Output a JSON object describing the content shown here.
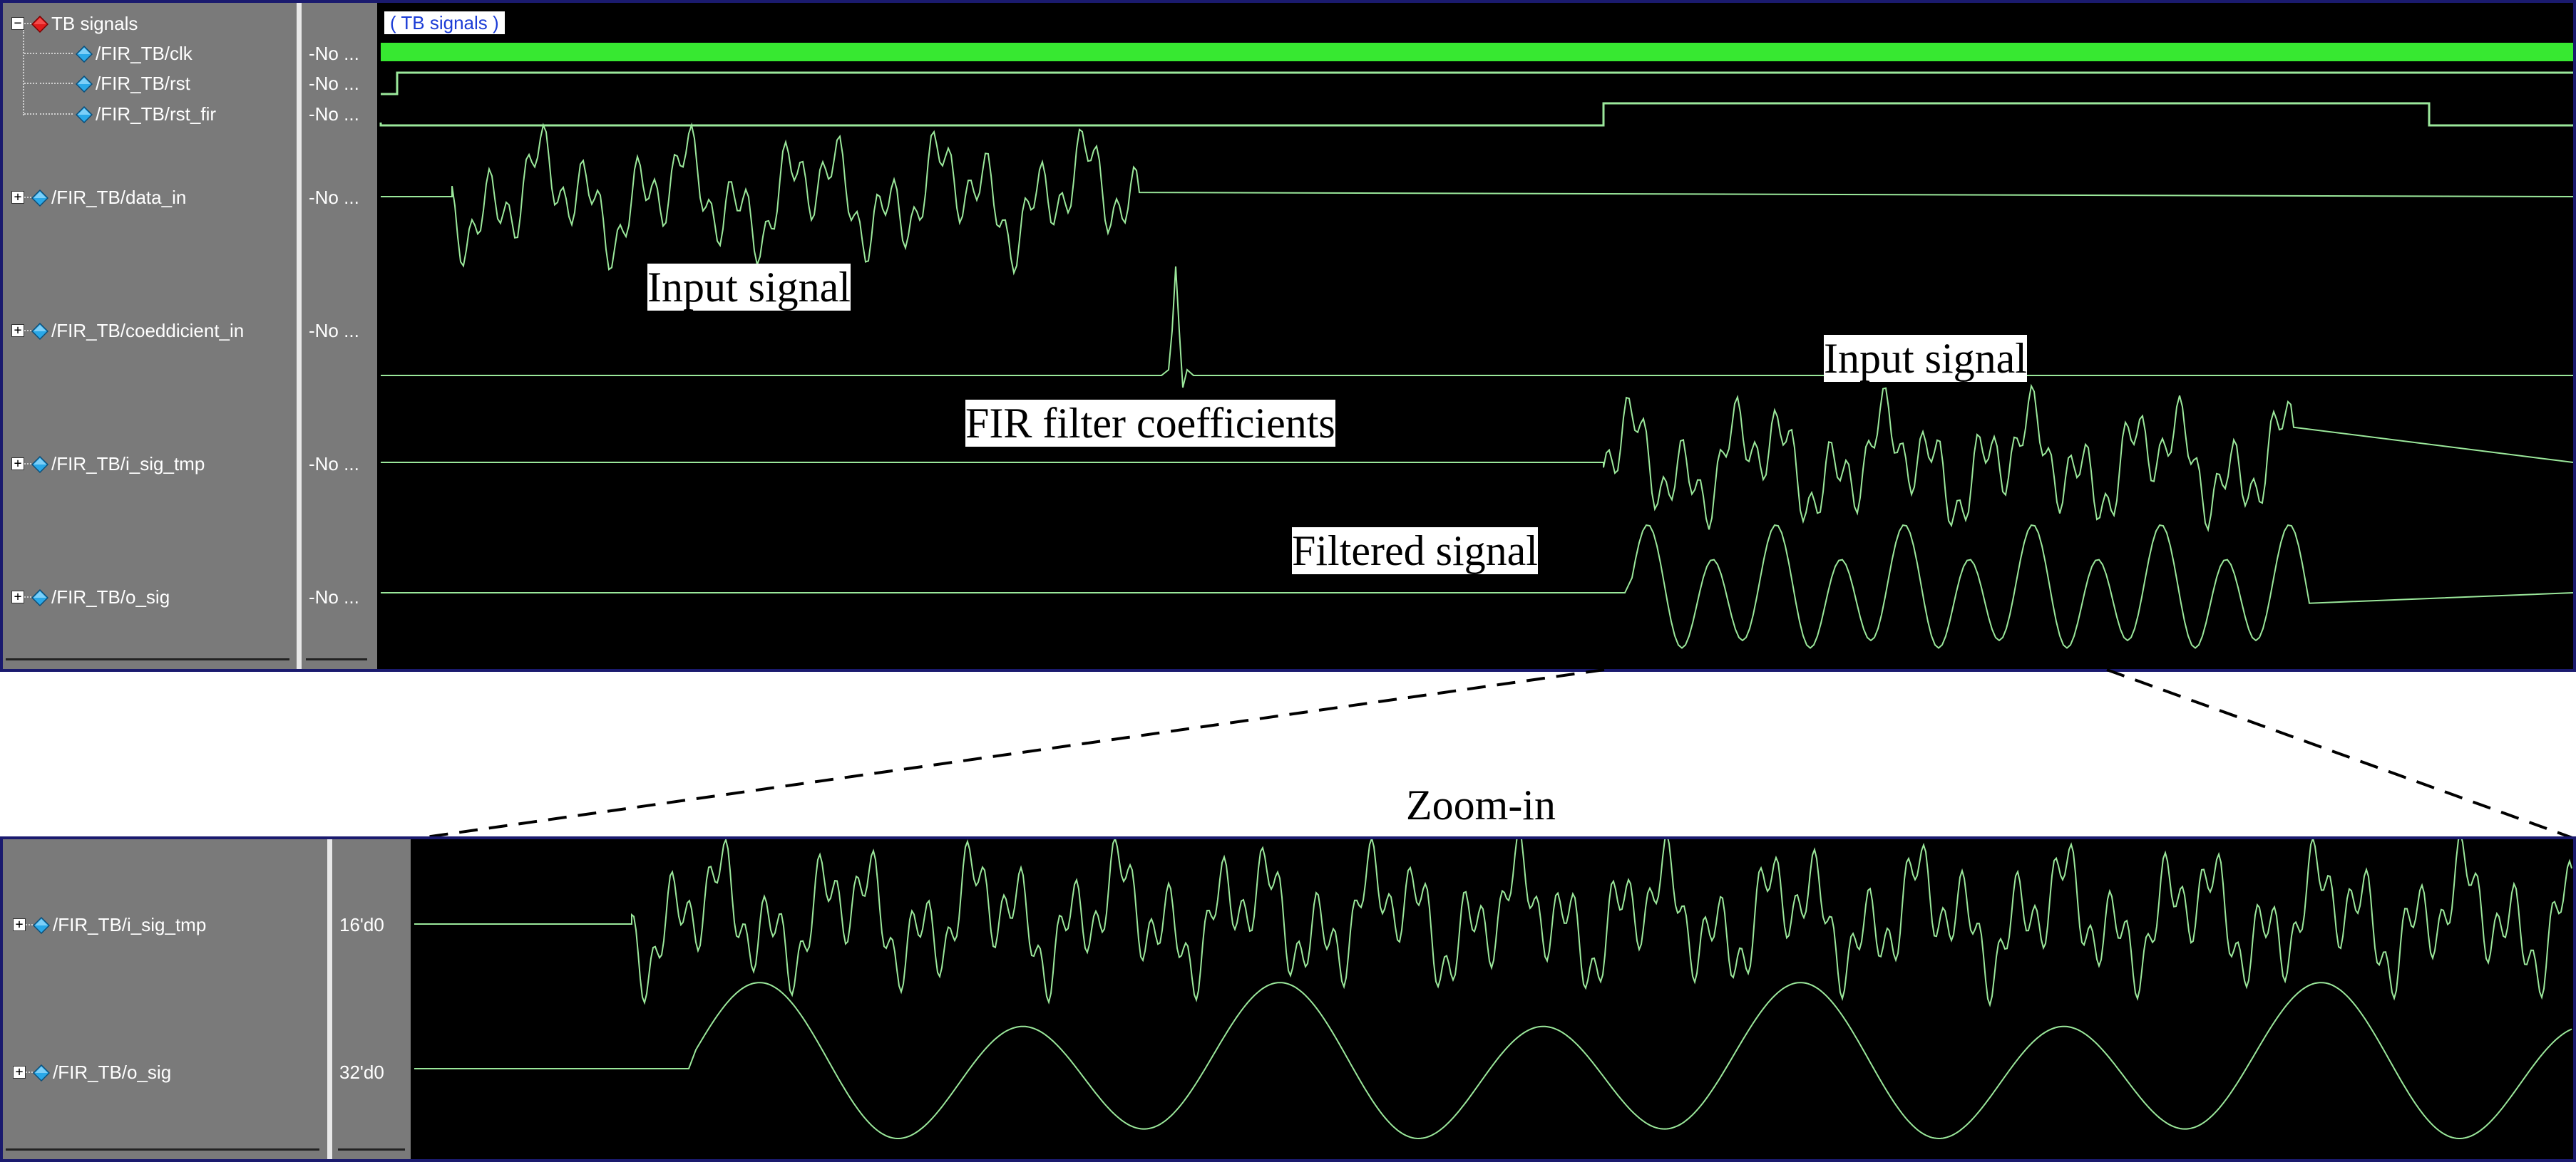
{
  "colors": {
    "name_panel": "#7a7a7a",
    "wave_bg": "#000000",
    "clock": "#37e831",
    "signal": "#9be89b",
    "group_label": "#1b3cd6",
    "frame": "#1a1a6e"
  },
  "main_window": {
    "group_label": "( TB signals )",
    "signals": [
      {
        "name": "TB signals",
        "value": "",
        "icon": "red-diamond-icon",
        "expander": "minus"
      },
      {
        "name": "/FIR_TB/clk",
        "value": "-No ...",
        "icon": "blue-diamond-icon"
      },
      {
        "name": "/FIR_TB/rst",
        "value": "-No ...",
        "icon": "blue-diamond-icon"
      },
      {
        "name": "/FIR_TB/rst_fir",
        "value": "-No ...",
        "icon": "blue-diamond-icon"
      },
      {
        "name": "/FIR_TB/data_in",
        "value": "-No ...",
        "icon": "blue-diamond-icon",
        "expander": "plus"
      },
      {
        "name": "/FIR_TB/coeddicient_in",
        "value": "-No ...",
        "icon": "blue-diamond-icon",
        "expander": "plus"
      },
      {
        "name": "/FIR_TB/i_sig_tmp",
        "value": "-No ...",
        "icon": "blue-diamond-icon",
        "expander": "plus"
      },
      {
        "name": "/FIR_TB/o_sig",
        "value": "-No ...",
        "icon": "blue-diamond-icon",
        "expander": "plus"
      }
    ]
  },
  "zoom_window": {
    "signals": [
      {
        "name": "/FIR_TB/i_sig_tmp",
        "value": "16'd0",
        "icon": "blue-diamond-icon",
        "expander": "plus"
      },
      {
        "name": "/FIR_TB/o_sig",
        "value": "32'd0",
        "icon": "blue-diamond-icon",
        "expander": "plus"
      }
    ]
  },
  "annotations": {
    "input_signal_1": "Input signal",
    "fir_coefficients": "FIR filter coefficients",
    "input_signal_2": "Input signal",
    "filtered_signal": "Filtered signal",
    "zoom_in": "Zoom-in"
  }
}
